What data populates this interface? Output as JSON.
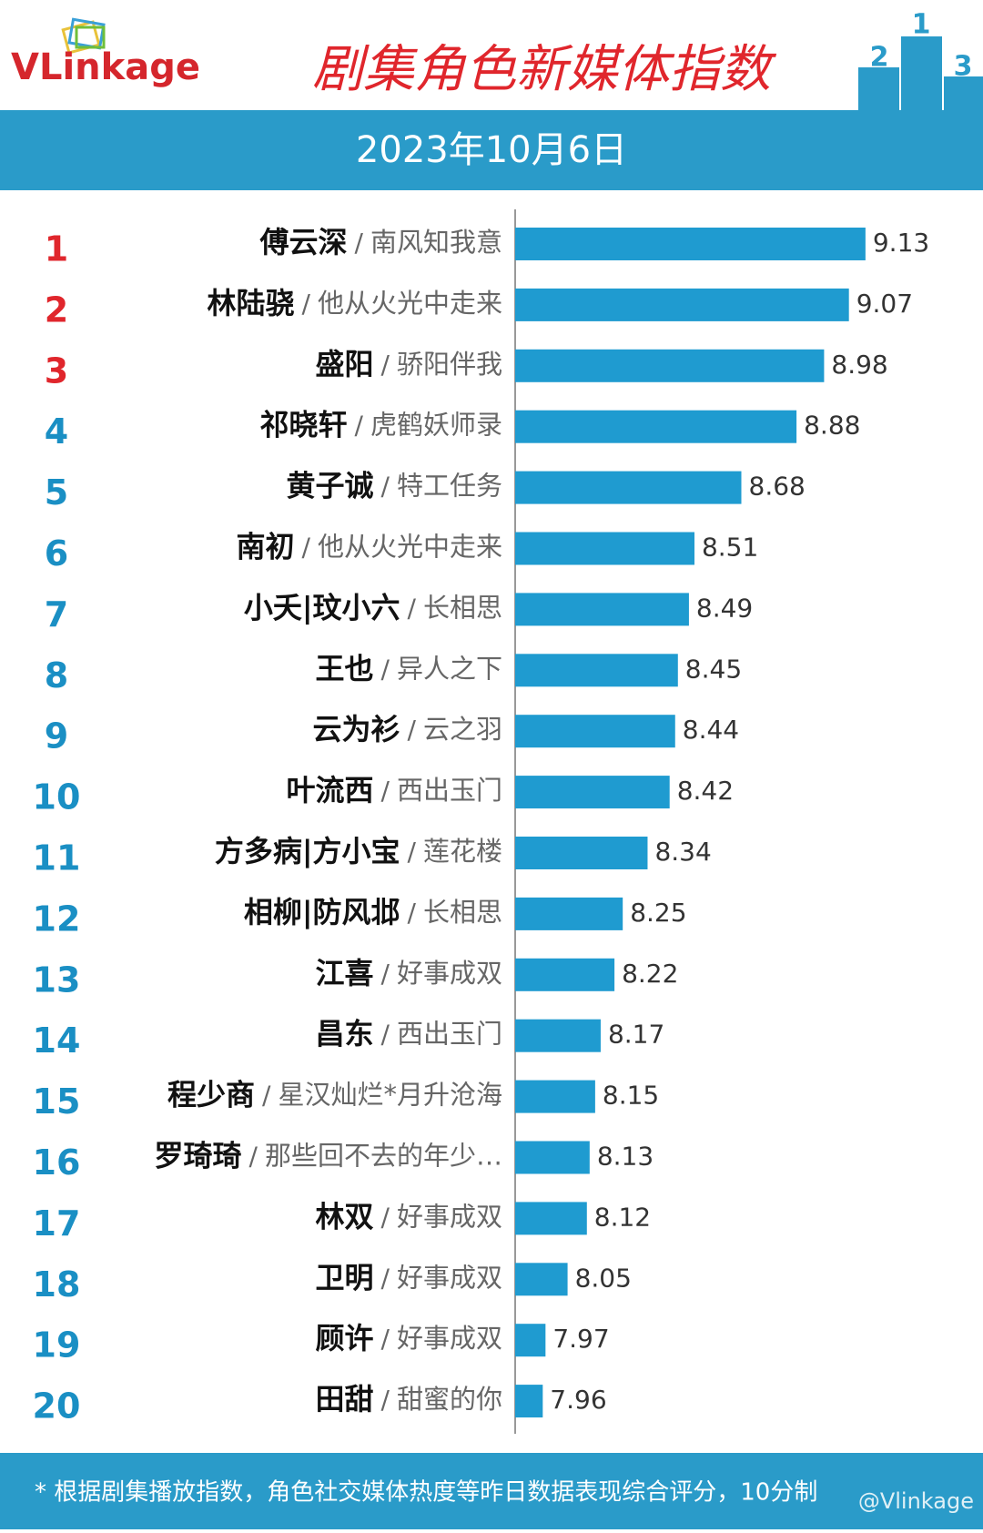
{
  "logo": "VLinkage",
  "podium": [
    "2",
    "1",
    "3"
  ],
  "chart_data": {
    "type": "bar",
    "orientation": "horizontal",
    "title": "剧集角色新媒体指数",
    "subtitle": "2023年10月6日",
    "separator": "/",
    "ranks": [
      1,
      2,
      3,
      4,
      5,
      6,
      7,
      8,
      9,
      10,
      11,
      12,
      13,
      14,
      15,
      16,
      17,
      18,
      19,
      20
    ],
    "rank_colors": [
      "#e0262c",
      "#e0262c",
      "#e0262c",
      "#1a8fc4",
      "#1a8fc4",
      "#1a8fc4",
      "#1a8fc4",
      "#1a8fc4",
      "#1a8fc4",
      "#1a8fc4",
      "#1a8fc4",
      "#1a8fc4",
      "#1a8fc4",
      "#1a8fc4",
      "#1a8fc4",
      "#1a8fc4",
      "#1a8fc4",
      "#1a8fc4",
      "#1a8fc4",
      "#1a8fc4"
    ],
    "categories": [
      "傅云深",
      "林陆骁",
      "盛阳",
      "祁晓轩",
      "黄子诚",
      "南初",
      "小夭|玟小六",
      "王也",
      "云为衫",
      "叶流西",
      "方多病|方小宝",
      "相柳|防风邶",
      "江喜",
      "昌东",
      "程少商",
      "罗琦琦",
      "林双",
      "卫明",
      "顾许",
      "田甜"
    ],
    "dramas": [
      "南风知我意",
      "他从火光中走来",
      "骄阳伴我",
      "虎鹤妖师录",
      "特工任务",
      "他从火光中走来",
      "长相思",
      "异人之下",
      "云之羽",
      "西出玉门",
      "莲花楼",
      "长相思",
      "好事成双",
      "西出玉门",
      "星汉灿烂*月升沧海",
      "那些回不去的年少…",
      "好事成双",
      "好事成双",
      "好事成双",
      "甜蜜的你"
    ],
    "values": [
      9.13,
      9.07,
      8.98,
      8.88,
      8.68,
      8.51,
      8.49,
      8.45,
      8.44,
      8.42,
      8.34,
      8.25,
      8.22,
      8.17,
      8.15,
      8.13,
      8.12,
      8.05,
      7.97,
      7.96
    ],
    "color": "#1f9bd0",
    "xlim": [
      7.86,
      9.5
    ],
    "footnote": "* 根据剧集播放指数，角色社交媒体热度等昨日数据表现综合评分，10分制",
    "watermark": "@Vlinkage"
  }
}
